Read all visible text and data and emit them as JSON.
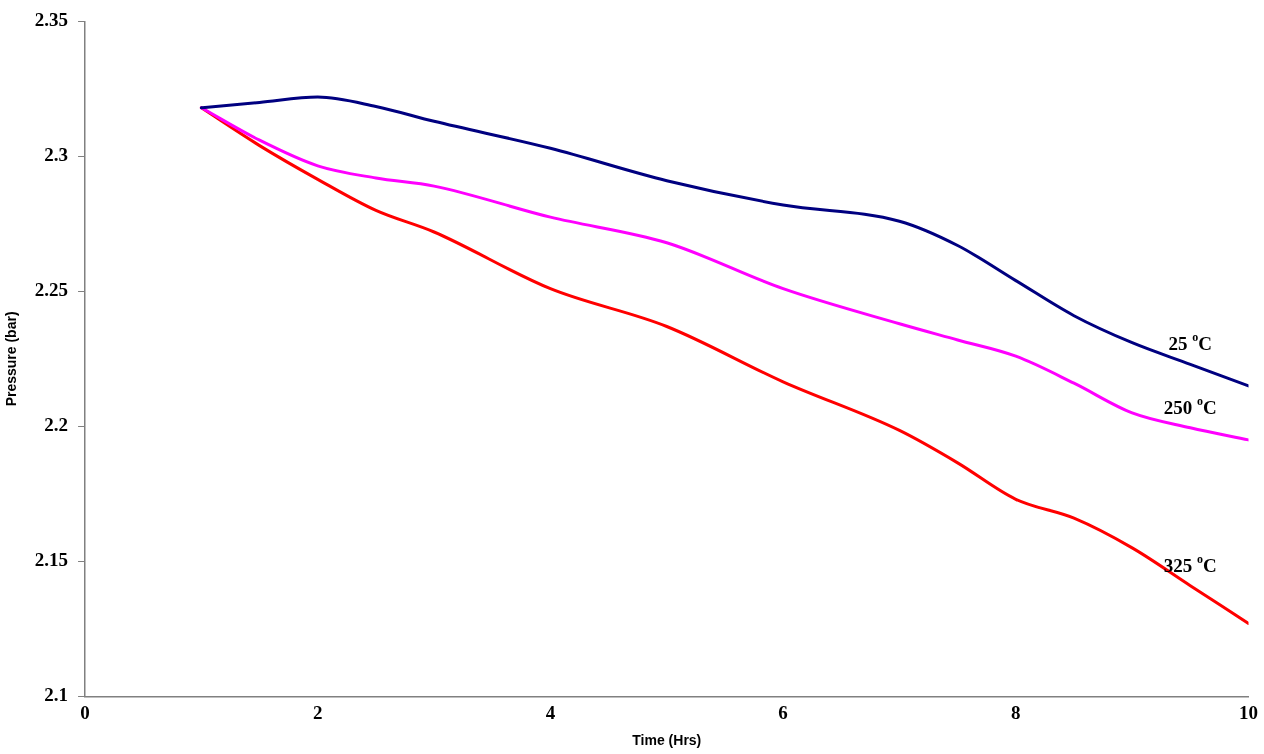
{
  "chart_data": {
    "type": "line",
    "xlabel": "Time (Hrs)",
    "ylabel": "Pressure (bar)",
    "xlim": [
      0,
      10
    ],
    "xticks": [
      0,
      2,
      4,
      6,
      8,
      10
    ],
    "ylim": [
      2.1,
      2.35
    ],
    "yticks": [
      2.1,
      2.15,
      2.2,
      2.25,
      2.3,
      2.35
    ],
    "grid": false,
    "legend": false,
    "marker": "none",
    "line_style": "solid",
    "series": [
      {
        "name": "25 $^{o}$C",
        "color": "#000080",
        "x": [
          1,
          1.5,
          2,
          2.5,
          3,
          4,
          5,
          6,
          7,
          7.5,
          8,
          8.5,
          9,
          9.5,
          10
        ],
        "values": [
          2.318,
          2.32,
          2.322,
          2.3185,
          2.313,
          2.303,
          2.291,
          2.282,
          2.276,
          2.267,
          2.254,
          2.241,
          2.231,
          2.223,
          2.215
        ]
      },
      {
        "name": "250 $^{o}$C",
        "color": "#ff00ff",
        "x": [
          1,
          1.5,
          2,
          2.5,
          3,
          4,
          5,
          6,
          7,
          7.5,
          8,
          8.5,
          9,
          9.5,
          10
        ],
        "values": [
          2.318,
          2.306,
          2.2965,
          2.292,
          2.289,
          2.2775,
          2.268,
          2.251,
          2.238,
          2.232,
          2.226,
          2.216,
          2.205,
          2.1995,
          2.195
        ]
      },
      {
        "name": "325 $^{o}$C",
        "color": "#ff0000",
        "x": [
          1,
          1.5,
          2,
          2.5,
          3,
          4,
          5,
          6,
          7,
          7.5,
          8,
          8.5,
          9,
          9.5,
          10
        ],
        "values": [
          2.318,
          2.304,
          2.2915,
          2.28,
          2.272,
          2.251,
          2.237,
          2.2165,
          2.1985,
          2.1865,
          2.173,
          2.166,
          2.155,
          2.141,
          2.127
        ]
      }
    ]
  }
}
